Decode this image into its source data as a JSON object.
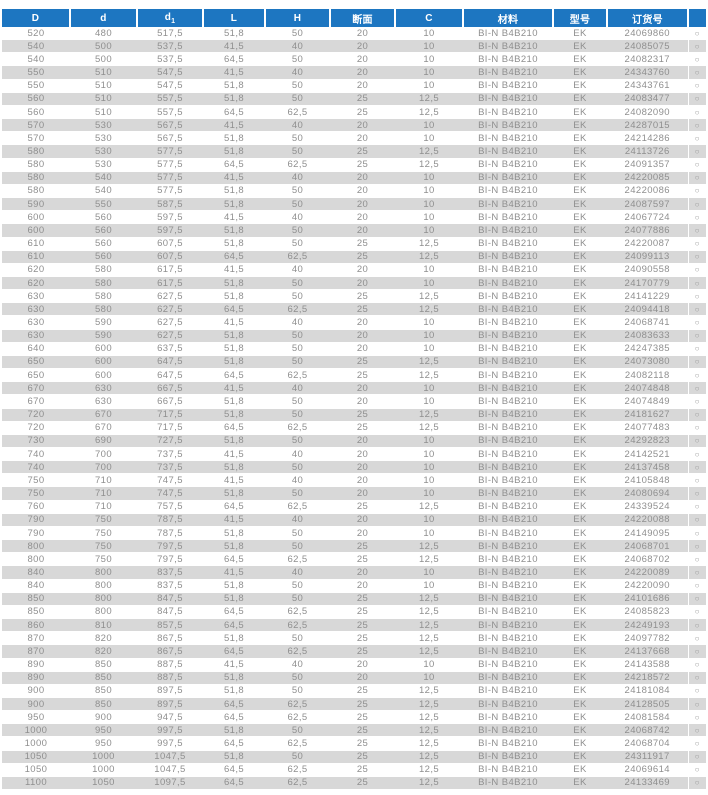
{
  "colors": {
    "header_bg": "#1d76c1",
    "header_text": "#ffffff",
    "row_alt_bg": "#d8d8d8",
    "data_text": "#8f8f8f"
  },
  "table": {
    "columns": [
      {
        "label": "D"
      },
      {
        "label": "d"
      },
      {
        "label": "d",
        "sub": "1"
      },
      {
        "label": "L"
      },
      {
        "label": "H"
      },
      {
        "label": "断面"
      },
      {
        "label": "C"
      },
      {
        "label": "材料"
      },
      {
        "label": "型号"
      },
      {
        "label": "订货号"
      },
      {
        "label": ""
      }
    ],
    "availability_symbol": "○",
    "rows": [
      [
        "520",
        "480",
        "517,5",
        "51,8",
        "50",
        "20",
        "10",
        "BI-N B4B210",
        "EK",
        "24069860"
      ],
      [
        "540",
        "500",
        "537,5",
        "41,5",
        "40",
        "20",
        "10",
        "BI-N B4B210",
        "EK",
        "24085075"
      ],
      [
        "540",
        "500",
        "537,5",
        "64,5",
        "50",
        "20",
        "10",
        "BI-N B4B210",
        "EK",
        "24082317"
      ],
      [
        "550",
        "510",
        "547,5",
        "41,5",
        "40",
        "20",
        "10",
        "BI-N B4B210",
        "EK",
        "24343760"
      ],
      [
        "550",
        "510",
        "547,5",
        "51,8",
        "50",
        "20",
        "10",
        "BI-N B4B210",
        "EK",
        "24343761"
      ],
      [
        "560",
        "510",
        "557,5",
        "51,8",
        "50",
        "25",
        "12,5",
        "BI-N B4B210",
        "EK",
        "24083477"
      ],
      [
        "560",
        "510",
        "557,5",
        "64,5",
        "62,5",
        "25",
        "12,5",
        "BI-N B4B210",
        "EK",
        "24082090"
      ],
      [
        "570",
        "530",
        "567,5",
        "41,5",
        "40",
        "20",
        "10",
        "BI-N B4B210",
        "EK",
        "24287015"
      ],
      [
        "570",
        "530",
        "567,5",
        "51,8",
        "50",
        "20",
        "10",
        "BI-N B4B210",
        "EK",
        "24214286"
      ],
      [
        "580",
        "530",
        "577,5",
        "51,8",
        "50",
        "25",
        "12,5",
        "BI-N B4B210",
        "EK",
        "24113726"
      ],
      [
        "580",
        "530",
        "577,5",
        "64,5",
        "62,5",
        "25",
        "12,5",
        "BI-N B4B210",
        "EK",
        "24091357"
      ],
      [
        "580",
        "540",
        "577,5",
        "41,5",
        "40",
        "20",
        "10",
        "BI-N B4B210",
        "EK",
        "24220085"
      ],
      [
        "580",
        "540",
        "577,5",
        "51,8",
        "50",
        "20",
        "10",
        "BI-N B4B210",
        "EK",
        "24220086"
      ],
      [
        "590",
        "550",
        "587,5",
        "51,8",
        "50",
        "20",
        "10",
        "BI-N B4B210",
        "EK",
        "24087597"
      ],
      [
        "600",
        "560",
        "597,5",
        "41,5",
        "40",
        "20",
        "10",
        "BI-N B4B210",
        "EK",
        "24067724"
      ],
      [
        "600",
        "560",
        "597,5",
        "51,8",
        "50",
        "20",
        "10",
        "BI-N B4B210",
        "EK",
        "24077886"
      ],
      [
        "610",
        "560",
        "607,5",
        "51,8",
        "50",
        "25",
        "12,5",
        "BI-N B4B210",
        "EK",
        "24220087"
      ],
      [
        "610",
        "560",
        "607,5",
        "64,5",
        "62,5",
        "25",
        "12,5",
        "BI-N B4B210",
        "EK",
        "24099113"
      ],
      [
        "620",
        "580",
        "617,5",
        "41,5",
        "40",
        "20",
        "10",
        "BI-N B4B210",
        "EK",
        "24090558"
      ],
      [
        "620",
        "580",
        "617,5",
        "51,8",
        "50",
        "20",
        "10",
        "BI-N B4B210",
        "EK",
        "24170779"
      ],
      [
        "630",
        "580",
        "627,5",
        "51,8",
        "50",
        "25",
        "12,5",
        "BI-N B4B210",
        "EK",
        "24141229"
      ],
      [
        "630",
        "580",
        "627,5",
        "64,5",
        "62,5",
        "25",
        "12,5",
        "BI-N B4B210",
        "EK",
        "24094418"
      ],
      [
        "630",
        "590",
        "627,5",
        "41,5",
        "40",
        "20",
        "10",
        "BI-N B4B210",
        "EK",
        "24068741"
      ],
      [
        "630",
        "590",
        "627,5",
        "51,8",
        "50",
        "20",
        "10",
        "BI-N B4B210",
        "EK",
        "24083633"
      ],
      [
        "640",
        "600",
        "637,5",
        "51,8",
        "50",
        "20",
        "10",
        "BI-N B4B210",
        "EK",
        "24247385"
      ],
      [
        "650",
        "600",
        "647,5",
        "51,8",
        "50",
        "25",
        "12,5",
        "BI-N B4B210",
        "EK",
        "24073080"
      ],
      [
        "650",
        "600",
        "647,5",
        "64,5",
        "62,5",
        "25",
        "12,5",
        "BI-N B4B210",
        "EK",
        "24082118"
      ],
      [
        "670",
        "630",
        "667,5",
        "41,5",
        "40",
        "20",
        "10",
        "BI-N B4B210",
        "EK",
        "24074848"
      ],
      [
        "670",
        "630",
        "667,5",
        "51,8",
        "50",
        "20",
        "10",
        "BI-N B4B210",
        "EK",
        "24074849"
      ],
      [
        "720",
        "670",
        "717,5",
        "51,8",
        "50",
        "25",
        "12,5",
        "BI-N B4B210",
        "EK",
        "24181627"
      ],
      [
        "720",
        "670",
        "717,5",
        "64,5",
        "62,5",
        "25",
        "12,5",
        "BI-N B4B210",
        "EK",
        "24077483"
      ],
      [
        "730",
        "690",
        "727,5",
        "51,8",
        "50",
        "20",
        "10",
        "BI-N B4B210",
        "EK",
        "24292823"
      ],
      [
        "740",
        "700",
        "737,5",
        "41,5",
        "40",
        "20",
        "10",
        "BI-N B4B210",
        "EK",
        "24142521"
      ],
      [
        "740",
        "700",
        "737,5",
        "51,8",
        "50",
        "20",
        "10",
        "BI-N B4B210",
        "EK",
        "24137458"
      ],
      [
        "750",
        "710",
        "747,5",
        "41,5",
        "40",
        "20",
        "10",
        "BI-N B4B210",
        "EK",
        "24105848"
      ],
      [
        "750",
        "710",
        "747,5",
        "51,8",
        "50",
        "20",
        "10",
        "BI-N B4B210",
        "EK",
        "24080694"
      ],
      [
        "760",
        "710",
        "757,5",
        "64,5",
        "62,5",
        "25",
        "12,5",
        "BI-N B4B210",
        "EK",
        "24339524"
      ],
      [
        "790",
        "750",
        "787,5",
        "41,5",
        "40",
        "20",
        "10",
        "BI-N B4B210",
        "EK",
        "24220088"
      ],
      [
        "790",
        "750",
        "787,5",
        "51,8",
        "50",
        "20",
        "10",
        "BI-N B4B210",
        "EK",
        "24149095"
      ],
      [
        "800",
        "750",
        "797,5",
        "51,8",
        "50",
        "25",
        "12,5",
        "BI-N B4B210",
        "EK",
        "24068701"
      ],
      [
        "800",
        "750",
        "797,5",
        "64,5",
        "62,5",
        "25",
        "12,5",
        "BI-N B4B210",
        "EK",
        "24068702"
      ],
      [
        "840",
        "800",
        "837,5",
        "41,5",
        "40",
        "20",
        "10",
        "BI-N B4B210",
        "EK",
        "24220089"
      ],
      [
        "840",
        "800",
        "837,5",
        "51,8",
        "50",
        "20",
        "10",
        "BI-N B4B210",
        "EK",
        "24220090"
      ],
      [
        "850",
        "800",
        "847,5",
        "51,8",
        "50",
        "25",
        "12,5",
        "BI-N B4B210",
        "EK",
        "24101686"
      ],
      [
        "850",
        "800",
        "847,5",
        "64,5",
        "62,5",
        "25",
        "12,5",
        "BI-N B4B210",
        "EK",
        "24085823"
      ],
      [
        "860",
        "810",
        "857,5",
        "64,5",
        "62,5",
        "25",
        "12,5",
        "BI-N B4B210",
        "EK",
        "24249193"
      ],
      [
        "870",
        "820",
        "867,5",
        "51,8",
        "50",
        "25",
        "12,5",
        "BI-N B4B210",
        "EK",
        "24097782"
      ],
      [
        "870",
        "820",
        "867,5",
        "64,5",
        "62,5",
        "25",
        "12,5",
        "BI-N B4B210",
        "EK",
        "24137668"
      ],
      [
        "890",
        "850",
        "887,5",
        "41,5",
        "40",
        "20",
        "10",
        "BI-N B4B210",
        "EK",
        "24143588"
      ],
      [
        "890",
        "850",
        "887,5",
        "51,8",
        "50",
        "20",
        "10",
        "BI-N B4B210",
        "EK",
        "24218572"
      ],
      [
        "900",
        "850",
        "897,5",
        "51,8",
        "50",
        "25",
        "12,5",
        "BI-N B4B210",
        "EK",
        "24181084"
      ],
      [
        "900",
        "850",
        "897,5",
        "64,5",
        "62,5",
        "25",
        "12,5",
        "BI-N B4B210",
        "EK",
        "24128505"
      ],
      [
        "950",
        "900",
        "947,5",
        "64,5",
        "62,5",
        "25",
        "12,5",
        "BI-N B4B210",
        "EK",
        "24081584"
      ],
      [
        "1000",
        "950",
        "997,5",
        "51,8",
        "50",
        "25",
        "12,5",
        "BI-N B4B210",
        "EK",
        "24068742"
      ],
      [
        "1000",
        "950",
        "997,5",
        "64,5",
        "62,5",
        "25",
        "12,5",
        "BI-N B4B210",
        "EK",
        "24068704"
      ],
      [
        "1050",
        "1000",
        "1047,5",
        "51,8",
        "50",
        "25",
        "12,5",
        "BI-N B4B210",
        "EK",
        "24311917"
      ],
      [
        "1050",
        "1000",
        "1047,5",
        "64,5",
        "62,5",
        "25",
        "12,5",
        "BI-N B4B210",
        "EK",
        "24069614"
      ],
      [
        "1100",
        "1050",
        "1097,5",
        "64,5",
        "62,5",
        "25",
        "12,5",
        "BI-N B4B210",
        "EK",
        "24133469"
      ]
    ]
  }
}
